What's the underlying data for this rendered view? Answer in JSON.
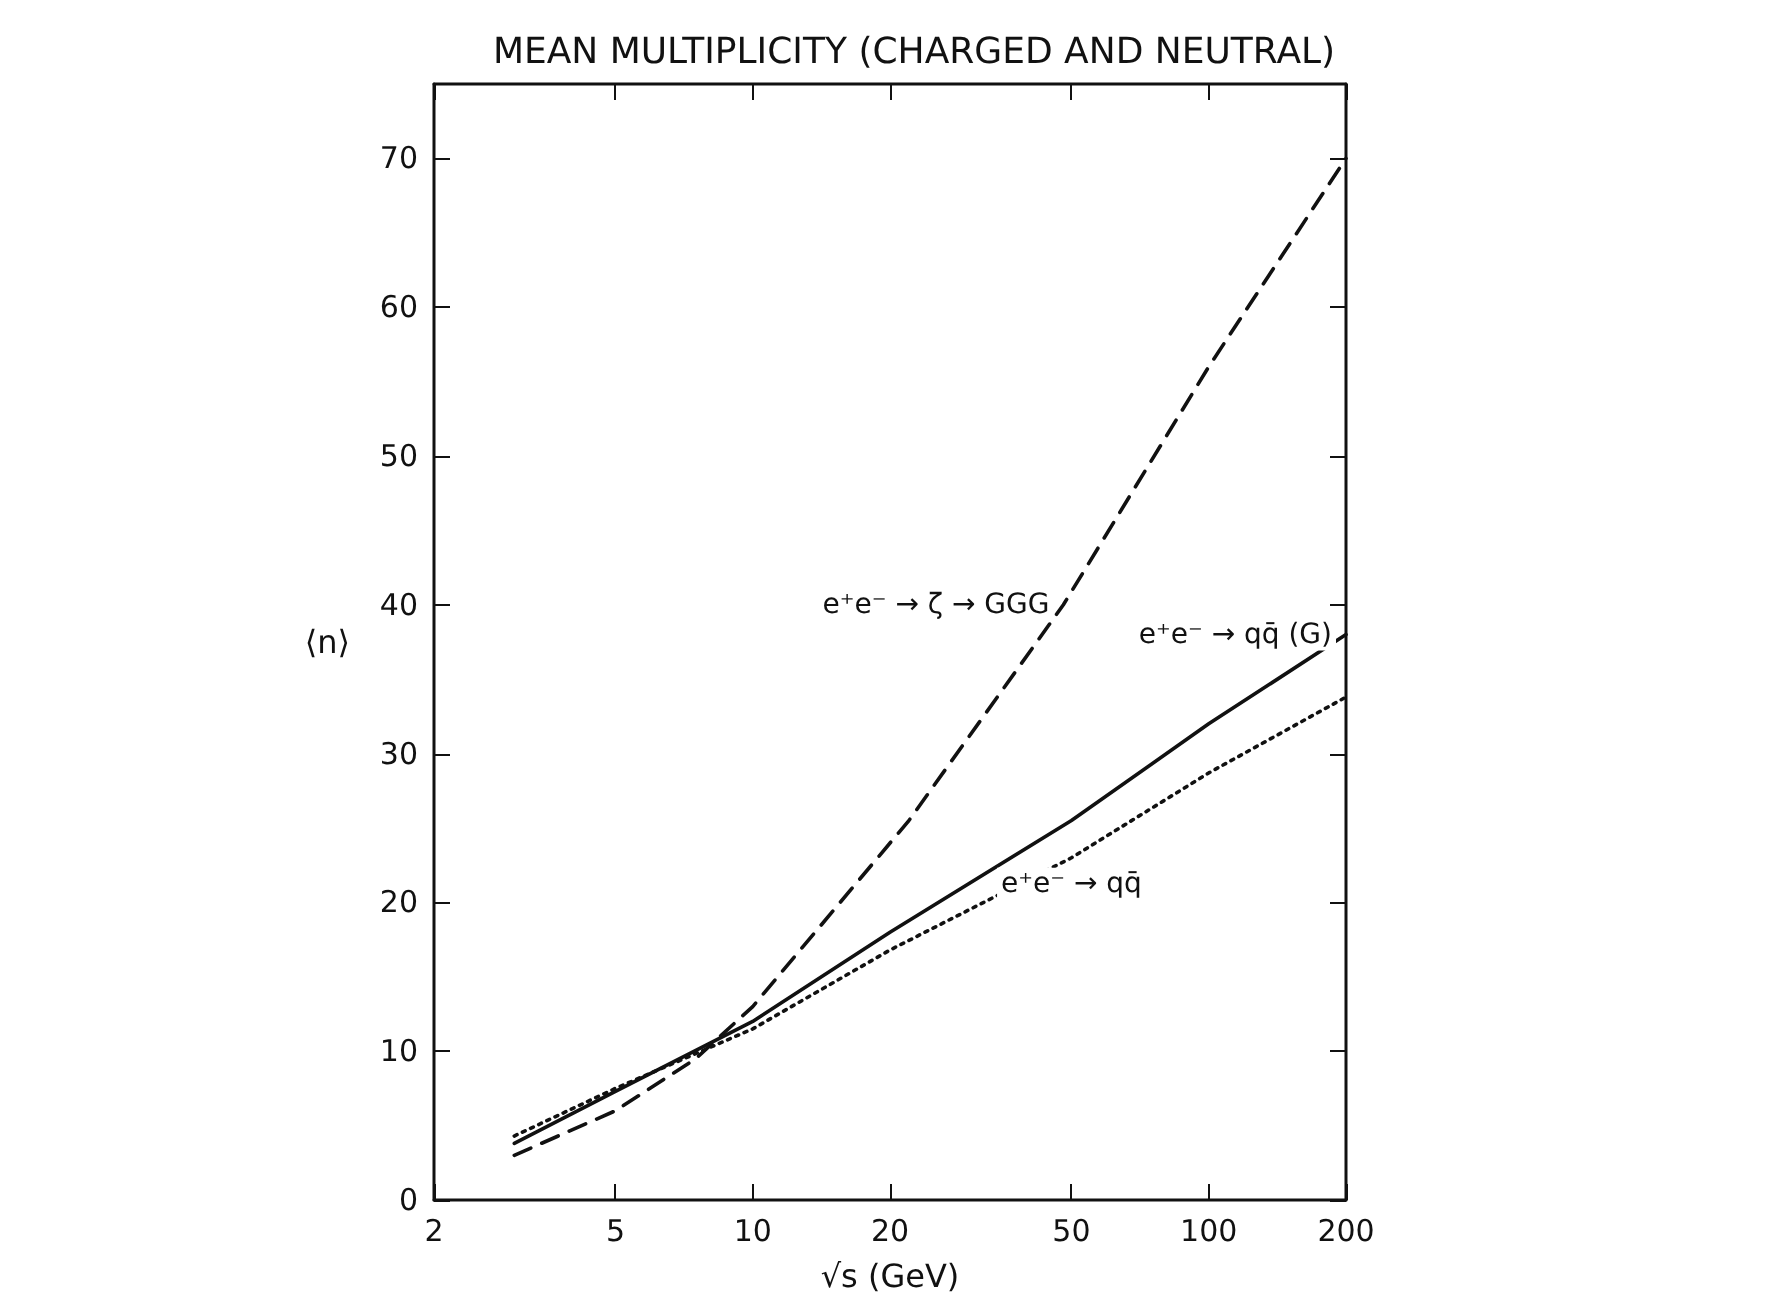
{
  "chart_data": {
    "type": "line",
    "title": "MEAN MULTIPLICITY (CHARGED AND NEUTRAL)",
    "xlabel": "√s (GeV)",
    "ylabel": "⟨n⟩",
    "log": "x",
    "xlim": [
      2,
      200
    ],
    "xticks": [
      2,
      5,
      10,
      20,
      50,
      100,
      200
    ],
    "ylim": [
      0,
      75
    ],
    "yticks": [
      0,
      10,
      20,
      30,
      40,
      50,
      60,
      70
    ],
    "grid": false,
    "marker": "none",
    "series": [
      {
        "name": "e⁺e⁻ → ζ → GGG",
        "color": "#111111",
        "line_style": "dashed",
        "x": [
          3,
          5,
          7.5,
          10,
          22,
          48,
          100,
          200
        ],
        "values": [
          3,
          6,
          9.5,
          13,
          25.5,
          40,
          56,
          70
        ]
      },
      {
        "name": "e⁺e⁻ → qq̄ (G)",
        "color": "#111111",
        "line_style": "solid",
        "x": [
          3,
          5,
          10,
          20,
          50,
          100,
          200
        ],
        "values": [
          3.8,
          7.3,
          12,
          18,
          25.5,
          32,
          38
        ]
      },
      {
        "name": "e⁺e⁻ → qq̄",
        "color": "#111111",
        "line_style": "dotted",
        "x": [
          3,
          5,
          10,
          20,
          50,
          100,
          200
        ],
        "values": [
          4.3,
          7.5,
          11.5,
          16.8,
          23,
          28.7,
          33.8
        ]
      }
    ]
  }
}
